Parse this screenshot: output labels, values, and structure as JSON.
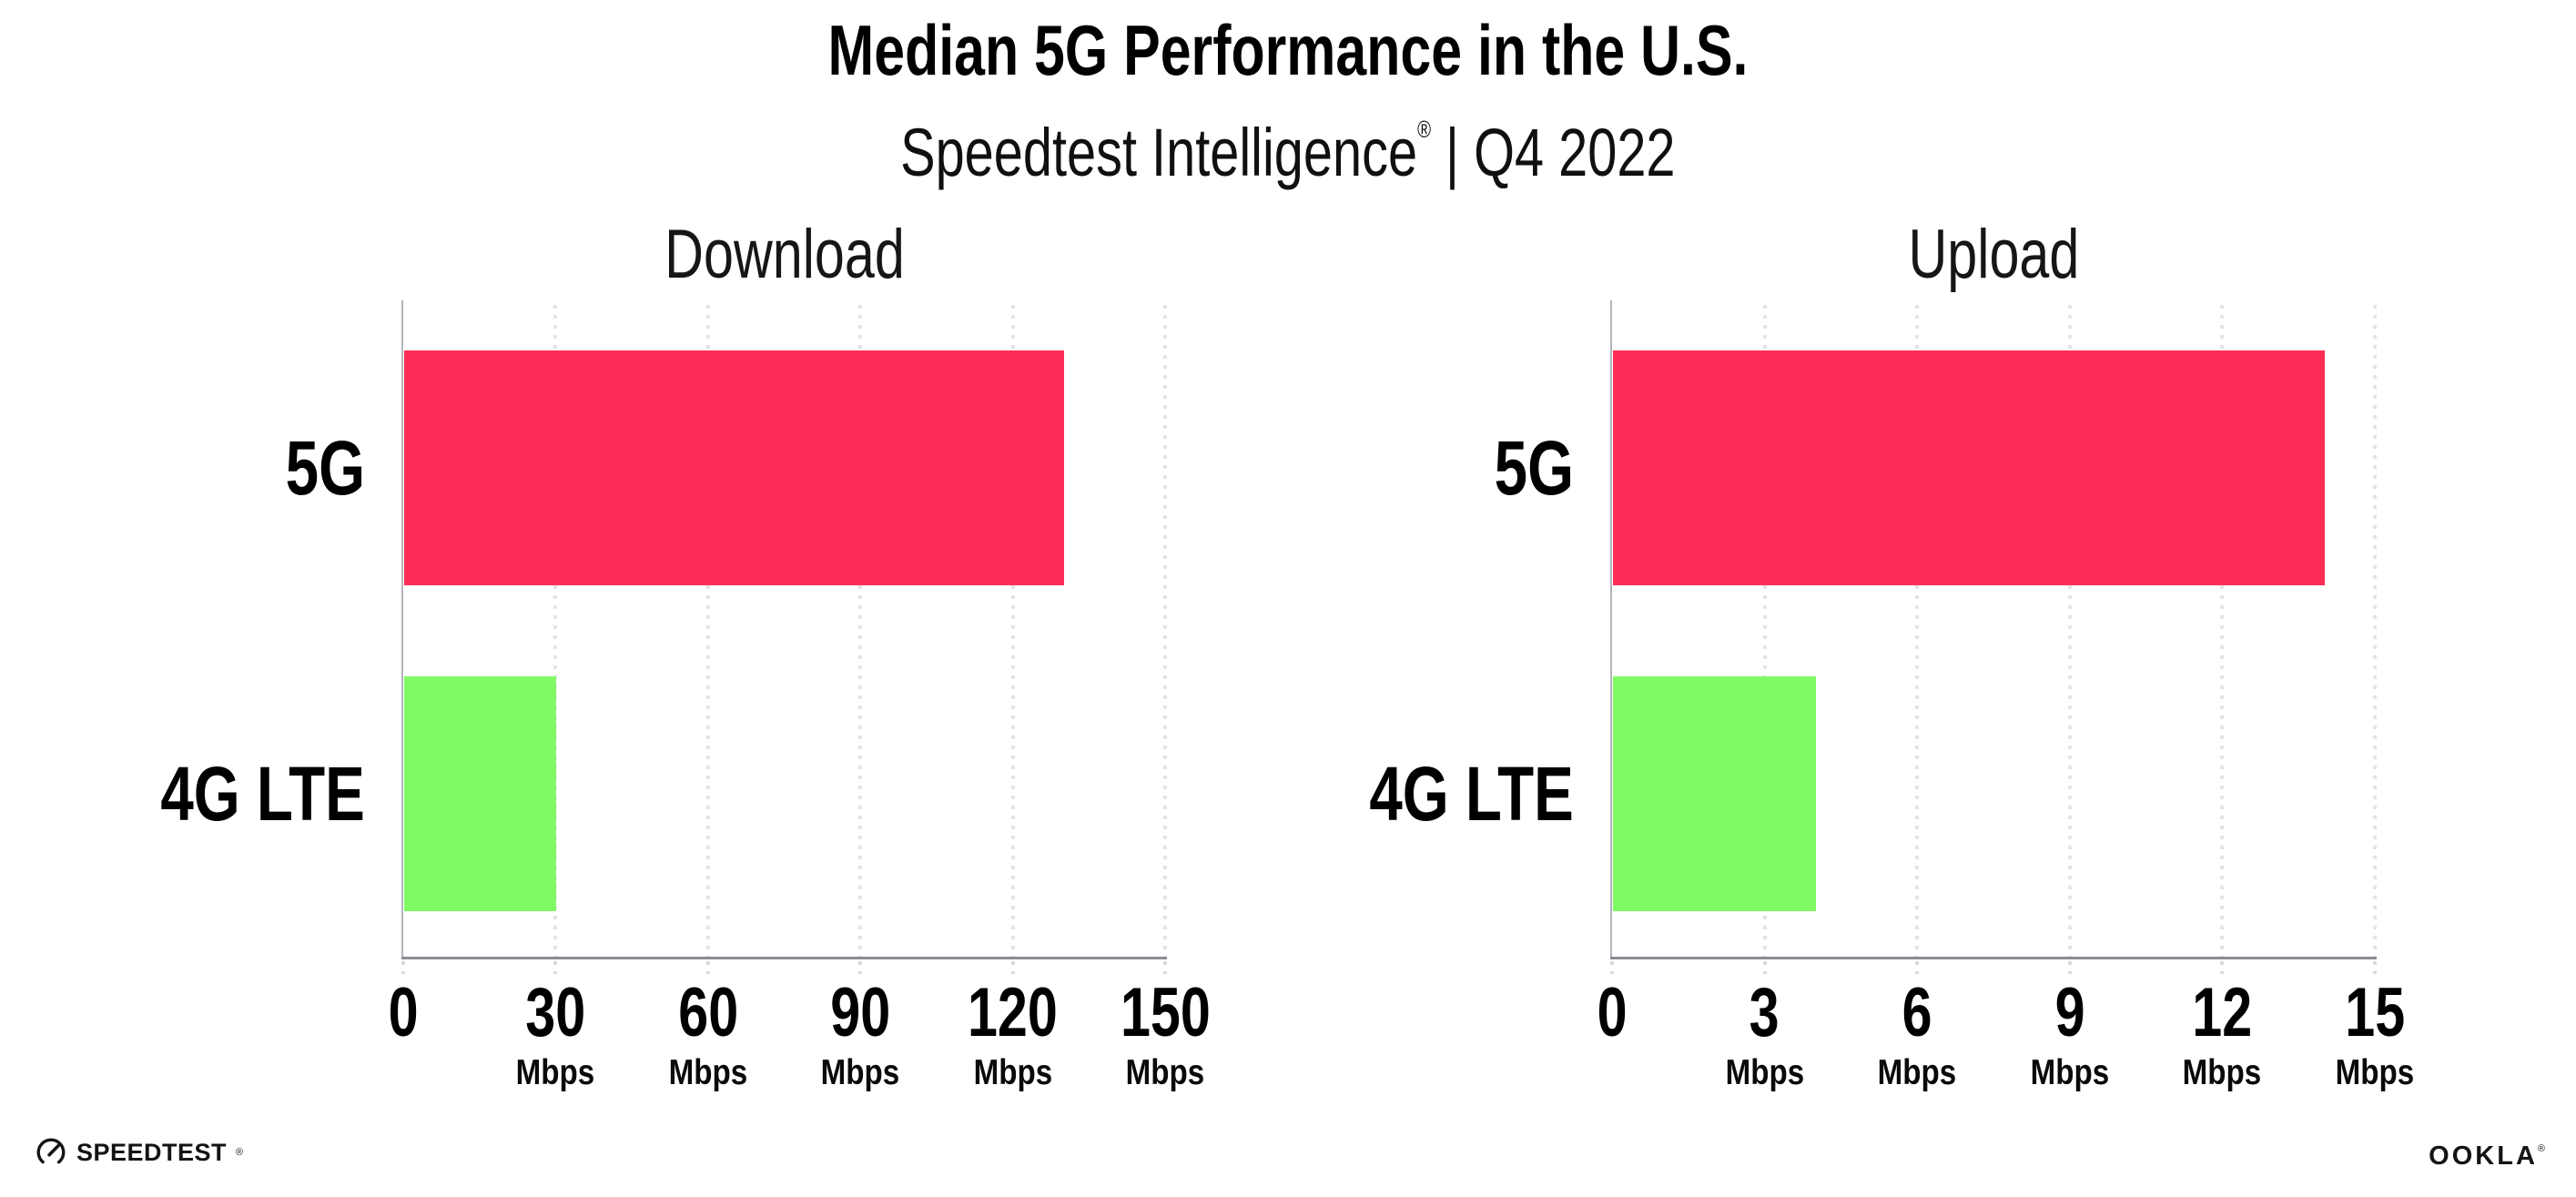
{
  "header": {
    "title": "Median 5G Performance in the U.S.",
    "subtitle_brand": "Speedtest Intelligence",
    "registered_mark": "®",
    "subtitle_rest": " | Q4 2022"
  },
  "footer": {
    "speedtest_logo_text": "SPEEDTEST",
    "speedtest_mark": "®",
    "ookla_logo_text": "OOKLA",
    "ookla_mark": "®"
  },
  "chart_data": [
    {
      "type": "bar",
      "orientation": "horizontal",
      "panel": "left",
      "title": "Download",
      "categories": [
        "5G",
        "4G LTE"
      ],
      "values": [
        130,
        30
      ],
      "unit": "Mbps",
      "xlim": [
        0,
        150
      ],
      "xticks": [
        0,
        30,
        60,
        90,
        120,
        150
      ],
      "bar_colors": [
        "#fd2d58",
        "#80fa64"
      ],
      "grid": "vertical-dotted",
      "legend": "none"
    },
    {
      "type": "bar",
      "orientation": "horizontal",
      "panel": "right",
      "title": "Upload",
      "categories": [
        "5G",
        "4G LTE"
      ],
      "values": [
        14,
        4
      ],
      "unit": "Mbps",
      "xlim": [
        0,
        15
      ],
      "xticks": [
        0,
        3,
        6,
        9,
        12,
        15
      ],
      "bar_colors": [
        "#fd2d58",
        "#80fa64"
      ],
      "grid": "vertical-dotted",
      "legend": "none"
    }
  ]
}
